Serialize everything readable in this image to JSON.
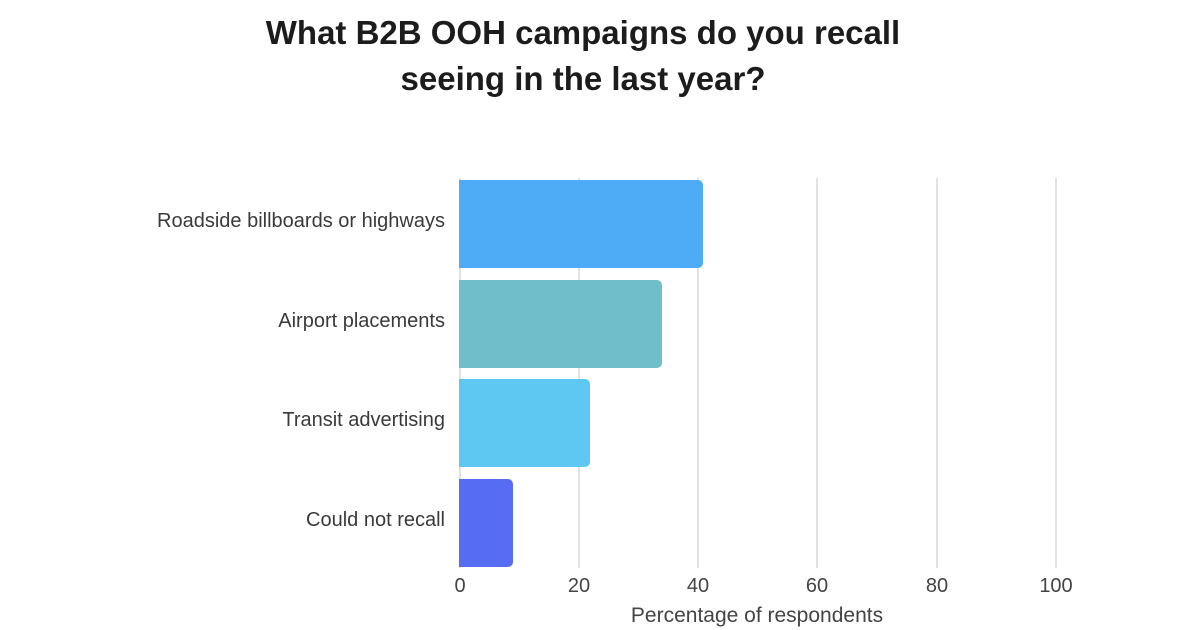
{
  "chart_data": {
    "type": "bar",
    "orientation": "horizontal",
    "title": "What B2B OOH campaigns do you recall seeing in the last year?",
    "title_lines": [
      "What B2B OOH campaigns do you recall",
      "seeing in the last year?"
    ],
    "categories": [
      "Roadside billboards or highways",
      "Airport placements",
      "Transit advertising",
      "Could not recall"
    ],
    "values": [
      41,
      34,
      22,
      9
    ],
    "colors": [
      "#4eacf7",
      "#6fbfca",
      "#5ec8f2",
      "#566cf2"
    ],
    "xlabel": "Percentage of respondents",
    "ylabel": "",
    "xlim": [
      0,
      100
    ],
    "xticks": [
      "0",
      "20",
      "40",
      "60",
      "80",
      "100"
    ],
    "grid": "vertical",
    "legend": null
  }
}
